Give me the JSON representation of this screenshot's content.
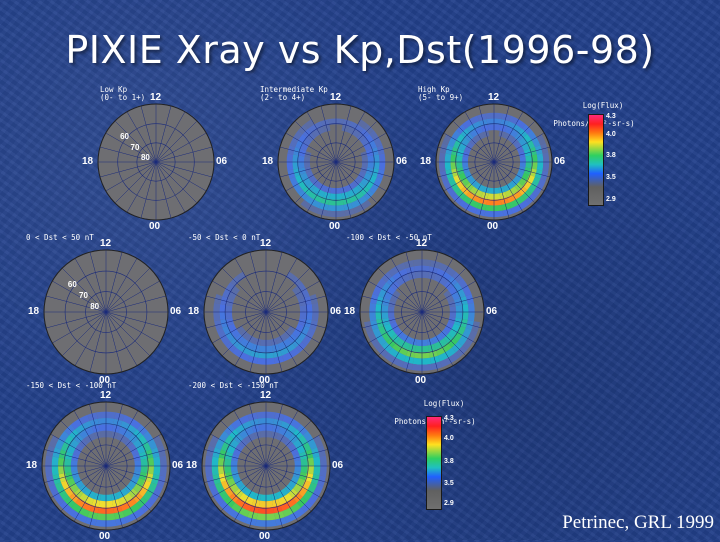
{
  "slide": {
    "title": "PIXIE Xray vs Kp,Dst(1996-98)",
    "citation": "Petrinec, GRL 1999"
  },
  "colorbar": {
    "title_line1": "Log(Flux)",
    "title_line2": "Photons/(cm²-sr-s)",
    "ticks": [
      "4.3",
      "4.0",
      "3.8",
      "3.5",
      "2.9"
    ]
  },
  "panels": [
    {
      "id": "low-kp",
      "label_line1": "Low Kp",
      "label_line2": "(0- to 1+)",
      "t12": "12",
      "t00": "00",
      "t18": "18",
      "t06": "06",
      "ring_labels": [
        "60",
        "70",
        "80"
      ],
      "intensity": 0.05
    },
    {
      "id": "intermediate-kp",
      "label_line1": "Intermediate Kp",
      "label_line2": "(2- to 4+)",
      "t12": "12",
      "t00": "00",
      "t18": "18",
      "t06": "06",
      "ring_labels": [],
      "intensity": 0.45
    },
    {
      "id": "high-kp",
      "label_line1": "High Kp",
      "label_line2": "(5- to 9+)",
      "t12": "12",
      "t00": "00",
      "t18": "18",
      "t06": "06",
      "ring_labels": [],
      "intensity": 0.9
    },
    {
      "id": "dst-0-50",
      "label_line1": "0 < Dst < 50 nT",
      "label_line2": "",
      "t12": "12",
      "t00": "00",
      "t18": "18",
      "t06": "06",
      "ring_labels": [
        "60",
        "70",
        "80"
      ],
      "intensity": 0.02
    },
    {
      "id": "dst-m50-0",
      "label_line1": "-50 < Dst < 0 nT",
      "label_line2": "",
      "t12": "12",
      "t00": "00",
      "t18": "18",
      "t06": "06",
      "ring_labels": [],
      "intensity": 0.3
    },
    {
      "id": "dst-m100-m50",
      "label_line1": "-100 < Dst < -50 nT",
      "label_line2": "",
      "t12": "12",
      "t00": "00",
      "t18": "18",
      "t06": "06",
      "ring_labels": [],
      "intensity": 0.6
    },
    {
      "id": "dst-m150-m100",
      "label_line1": "-150 < Dst < -100 nT",
      "label_line2": "",
      "t12": "12",
      "t00": "00",
      "t18": "18",
      "t06": "06",
      "ring_labels": [],
      "intensity": 0.95
    },
    {
      "id": "dst-m200-m150",
      "label_line1": "-200 < Dst < -150 nT",
      "label_line2": "",
      "t12": "12",
      "t00": "00",
      "t18": "18",
      "t06": "06",
      "ring_labels": [],
      "intensity": 1.0
    }
  ]
}
